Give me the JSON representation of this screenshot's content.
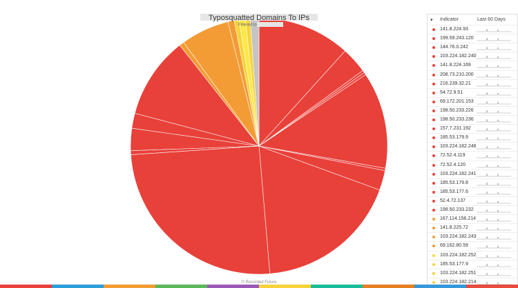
{
  "chart_data": {
    "type": "pie",
    "title": "Typosquatted Domains To IPs",
    "subtitle": "Filtered to:",
    "values": [
      11.7,
      3.3,
      0.3,
      0.3,
      12.2,
      0.3,
      2.5,
      18.1,
      25.3,
      0.5,
      2.8,
      1.9,
      10.3,
      0.6,
      6.1,
      0.8,
      0.6,
      0.8,
      0.6,
      1.1
    ],
    "colors": [
      "#e8413a",
      "#e8413a",
      "#e8413a",
      "#e8413a",
      "#e8413a",
      "#e8413a",
      "#e8413a",
      "#e8413a",
      "#e8413a",
      "#e8413a",
      "#e8413a",
      "#e8413a",
      "#e8413a",
      "#f39c35",
      "#f39c35",
      "#f39c35",
      "#f7d33a",
      "#fbe84a",
      "#f7d33a",
      "#c4c4c4"
    ]
  },
  "table": {
    "header": [
      "Indicator",
      "Last 60 Days"
    ],
    "rows": [
      {
        "indicator": "141.8.224.93",
        "color": "#e8413a"
      },
      {
        "indicator": "199.59.243.120",
        "color": "#e8413a"
      },
      {
        "indicator": "144.76.0.242",
        "color": "#e8413a"
      },
      {
        "indicator": "103.224.182.240",
        "color": "#e8413a"
      },
      {
        "indicator": "141.8.224.169",
        "color": "#e8413a"
      },
      {
        "indicator": "208.73.210.200",
        "color": "#e8413a"
      },
      {
        "indicator": "216.239.32.21",
        "color": "#e8413a"
      },
      {
        "indicator": "54.72.9.51",
        "color": "#e8413a"
      },
      {
        "indicator": "69.172.201.153",
        "color": "#e8413a"
      },
      {
        "indicator": "198.50.233.226",
        "color": "#e8413a"
      },
      {
        "indicator": "198.50.233.236",
        "color": "#e8413a"
      },
      {
        "indicator": "157.7.231.192",
        "color": "#e8413a"
      },
      {
        "indicator": "185.53.179.9",
        "color": "#e8413a"
      },
      {
        "indicator": "103.224.182.246",
        "color": "#e8413a"
      },
      {
        "indicator": "72.52.4.119",
        "color": "#e8413a"
      },
      {
        "indicator": "72.52.4.120",
        "color": "#e8413a"
      },
      {
        "indicator": "103.224.182.241",
        "color": "#e8413a"
      },
      {
        "indicator": "185.53.179.8",
        "color": "#e8413a"
      },
      {
        "indicator": "185.53.177.6",
        "color": "#e8413a"
      },
      {
        "indicator": "52.4.72.137",
        "color": "#e8413a"
      },
      {
        "indicator": "198.50.233.232",
        "color": "#e8413a"
      },
      {
        "indicator": "167.114.156.214",
        "color": "#f39c35"
      },
      {
        "indicator": "141.8.225.72",
        "color": "#f39c35"
      },
      {
        "indicator": "103.224.182.243",
        "color": "#f39c35"
      },
      {
        "indicator": "69.162.80.59",
        "color": "#f39c35"
      },
      {
        "indicator": "103.224.182.252",
        "color": "#f7d33a"
      },
      {
        "indicator": "185.53.177.9",
        "color": "#f7d33a"
      },
      {
        "indicator": "103.224.182.251",
        "color": "#f7d33a"
      },
      {
        "indicator": "103.224.182.214",
        "color": "#f7d33a"
      }
    ]
  },
  "footer": "© Recorded Future"
}
